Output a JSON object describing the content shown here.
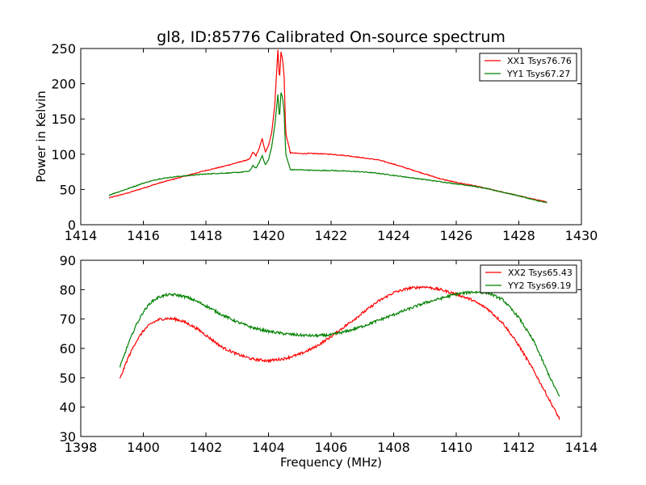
{
  "figure": {
    "title": "gl8, ID:85776 Calibrated On-source spectrum"
  },
  "chart_data": [
    {
      "type": "line",
      "panel": "top",
      "title": "gl8, ID:85776 Calibrated On-source spectrum",
      "xlabel": "",
      "ylabel": "Power in Kelvin",
      "xlim": [
        1414,
        1430
      ],
      "ylim": [
        0,
        250
      ],
      "xticks": [
        "1414",
        "1416",
        "1418",
        "1420",
        "1422",
        "1424",
        "1426",
        "1428",
        "1430"
      ],
      "yticks": [
        "0",
        "50",
        "100",
        "150",
        "200",
        "250"
      ],
      "legend_position": "upper right",
      "grid": false,
      "series": [
        {
          "name": "XX1 Tsys76.76",
          "color": "#ff0000",
          "x": [
            1414.9,
            1415.5,
            1416.0,
            1416.5,
            1417.0,
            1417.5,
            1418.0,
            1418.5,
            1419.0,
            1419.4,
            1419.5,
            1419.6,
            1419.7,
            1419.8,
            1419.9,
            1420.0,
            1420.1,
            1420.2,
            1420.3,
            1420.35,
            1420.4,
            1420.45,
            1420.5,
            1420.55,
            1420.7,
            1421.0,
            1421.5,
            1422.0,
            1422.5,
            1423.0,
            1423.5,
            1424.0,
            1424.5,
            1425.0,
            1425.5,
            1426.0,
            1426.5,
            1427.0,
            1427.5,
            1428.0,
            1428.5,
            1428.9
          ],
          "y": [
            38,
            45,
            52,
            59,
            65,
            71,
            77,
            82,
            88,
            93,
            103,
            98,
            108,
            122,
            103,
            112,
            130,
            170,
            248,
            205,
            245,
            235,
            210,
            130,
            102,
            101,
            101,
            100,
            98,
            95,
            92,
            86,
            79,
            72,
            65,
            60,
            56,
            51,
            46,
            41,
            36,
            32
          ]
        },
        {
          "name": "YY1 Tsys67.27",
          "color": "#008000",
          "x": [
            1414.9,
            1415.5,
            1416.0,
            1416.5,
            1417.0,
            1417.5,
            1418.0,
            1418.5,
            1419.0,
            1419.4,
            1419.5,
            1419.6,
            1419.7,
            1419.8,
            1419.9,
            1420.0,
            1420.1,
            1420.2,
            1420.3,
            1420.35,
            1420.4,
            1420.45,
            1420.5,
            1420.55,
            1420.7,
            1421.0,
            1421.5,
            1422.0,
            1422.5,
            1423.0,
            1423.5,
            1424.0,
            1424.5,
            1425.0,
            1425.5,
            1426.0,
            1426.5,
            1427.0,
            1427.5,
            1428.0,
            1428.5,
            1428.9
          ],
          "y": [
            42,
            51,
            59,
            65,
            68,
            70,
            72,
            73,
            74,
            76,
            84,
            80,
            88,
            98,
            85,
            92,
            110,
            140,
            185,
            150,
            188,
            180,
            160,
            100,
            78,
            78,
            77,
            77,
            76,
            75,
            73,
            70,
            67,
            64,
            61,
            58,
            55,
            51,
            46,
            41,
            35,
            31
          ]
        }
      ]
    },
    {
      "type": "line",
      "panel": "bottom",
      "title": "",
      "xlabel": "Frequency (MHz)",
      "ylabel": "",
      "xlim": [
        1398,
        1414
      ],
      "ylim": [
        30,
        90
      ],
      "xticks": [
        "1398",
        "1400",
        "1402",
        "1404",
        "1406",
        "1408",
        "1410",
        "1412",
        "1414"
      ],
      "yticks": [
        "30",
        "40",
        "50",
        "60",
        "70",
        "80",
        "90"
      ],
      "legend_position": "upper right",
      "grid": false,
      "series": [
        {
          "name": "XX2 Tsys65.43",
          "color": "#ff0000",
          "x": [
            1399.25,
            1399.5,
            1399.75,
            1400.0,
            1400.25,
            1400.5,
            1400.75,
            1401.0,
            1401.25,
            1401.5,
            1401.75,
            1402.0,
            1402.5,
            1403.0,
            1403.5,
            1404.0,
            1404.5,
            1405.0,
            1405.5,
            1406.0,
            1406.5,
            1407.0,
            1407.5,
            1408.0,
            1408.5,
            1409.0,
            1409.5,
            1410.0,
            1410.5,
            1411.0,
            1411.5,
            1412.0,
            1412.5,
            1413.0,
            1413.3
          ],
          "y": [
            49.5,
            56.5,
            62,
            66,
            68.5,
            69.8,
            70.2,
            70,
            69.3,
            68,
            66.5,
            64.5,
            60.5,
            58,
            56.3,
            55.8,
            56.5,
            58,
            60.5,
            64,
            68,
            72,
            76,
            79,
            80.5,
            81,
            80,
            78.5,
            76.5,
            73.5,
            68.5,
            61,
            52,
            42,
            36
          ]
        },
        {
          "name": "YY2 Tsys69.19",
          "color": "#008000",
          "x": [
            1399.25,
            1399.5,
            1399.75,
            1400.0,
            1400.25,
            1400.5,
            1400.75,
            1401.0,
            1401.25,
            1401.5,
            1401.75,
            1402.0,
            1402.5,
            1403.0,
            1403.5,
            1404.0,
            1404.5,
            1405.0,
            1405.5,
            1406.0,
            1406.5,
            1407.0,
            1407.5,
            1408.0,
            1408.5,
            1409.0,
            1409.5,
            1410.0,
            1410.5,
            1411.0,
            1411.5,
            1412.0,
            1412.5,
            1413.0,
            1413.3
          ],
          "y": [
            53.5,
            61,
            67.5,
            72.5,
            75.8,
            77.5,
            78.2,
            78.3,
            77.8,
            77,
            75.8,
            74.5,
            71.5,
            69,
            67,
            65.8,
            65,
            64.5,
            64.3,
            64.6,
            65.8,
            67.5,
            69.5,
            71.5,
            73.5,
            75.5,
            77,
            78.5,
            79.2,
            79,
            76.5,
            70.5,
            62,
            50,
            43.5
          ]
        }
      ]
    }
  ]
}
